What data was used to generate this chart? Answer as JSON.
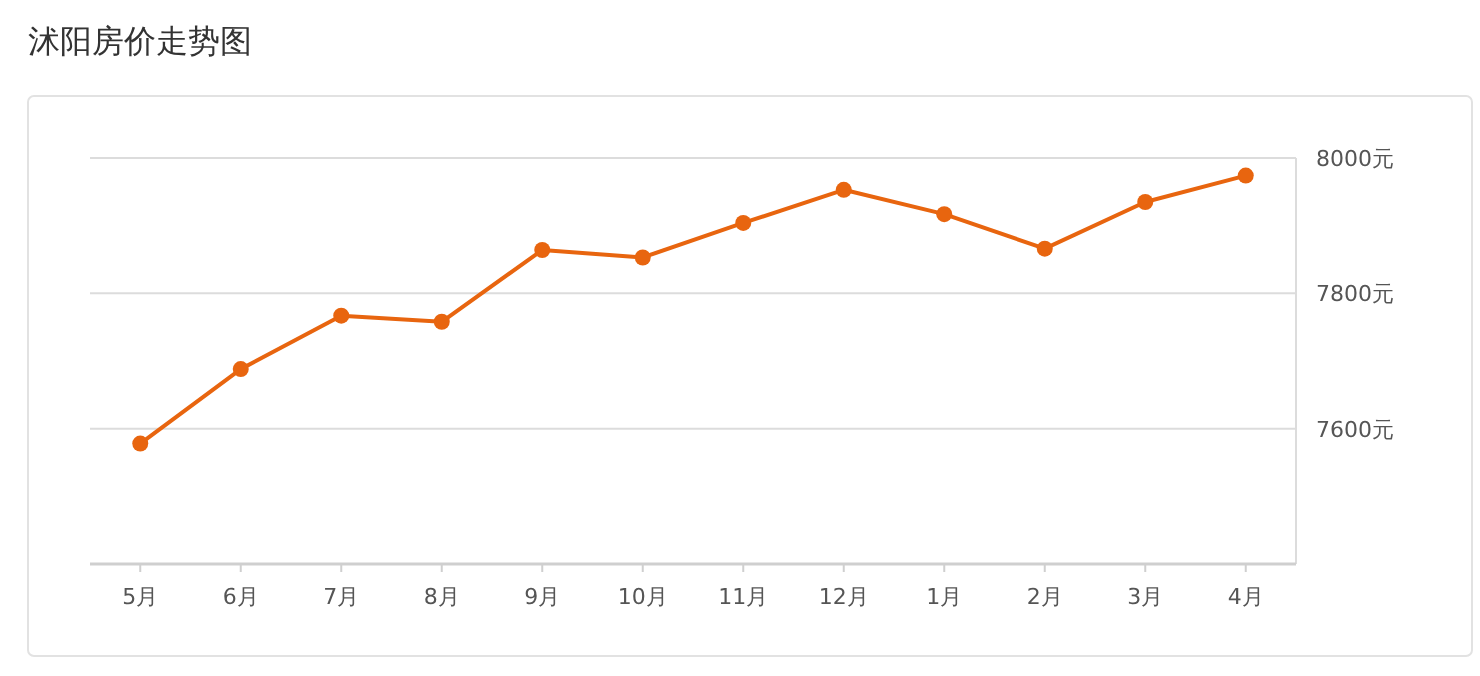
{
  "chart_data": {
    "type": "line",
    "title": "沭阳房价走势图",
    "categories": [
      "5月",
      "6月",
      "7月",
      "8月",
      "9月",
      "10月",
      "11月",
      "12月",
      "1月",
      "2月",
      "3月",
      "4月"
    ],
    "series": [
      {
        "color": "#e8650f",
        "values": [
          7578,
          7688,
          7767,
          7758,
          7864,
          7853,
          7904,
          7953,
          7917,
          7866,
          7935,
          7974
        ]
      }
    ],
    "ylim": [
      7400,
      8000
    ],
    "yticks": [
      {
        "value": 7600,
        "label": "7600元"
      },
      {
        "value": 7800,
        "label": "7800元"
      },
      {
        "value": 8000,
        "label": "8000元"
      }
    ],
    "grid": "y",
    "marker": "circle",
    "line_style": "solid"
  }
}
